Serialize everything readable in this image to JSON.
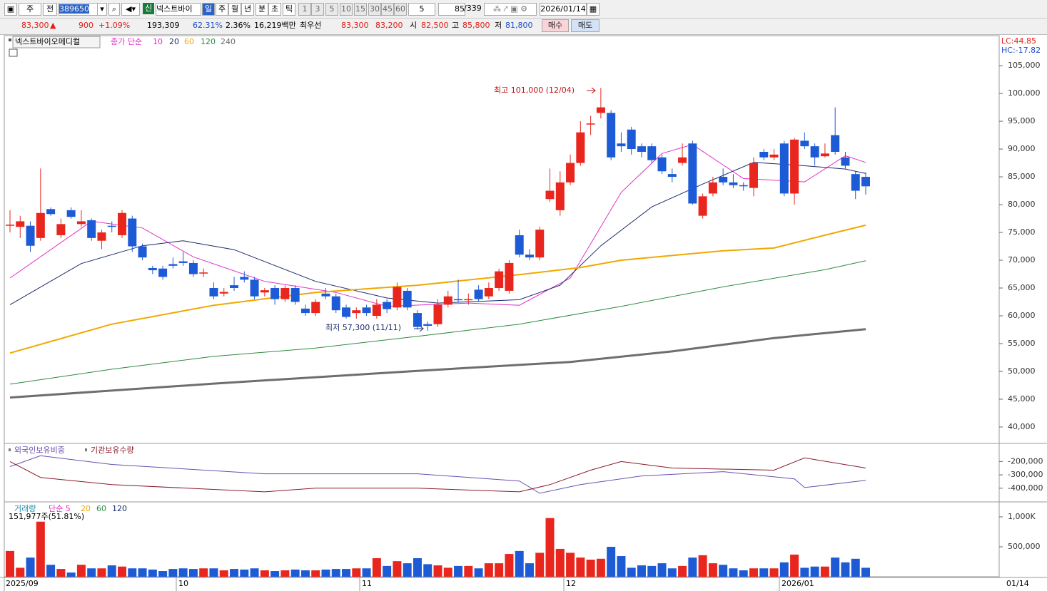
{
  "toolbar": {
    "period_type": "주",
    "scope": "전",
    "code": "389650",
    "credit": "신",
    "name": "넥스트바이",
    "timeframes": [
      "일",
      "주",
      "월",
      "년",
      "분",
      "초",
      "틱"
    ],
    "intervals": [
      "1",
      "3",
      "5",
      "10",
      "15",
      "30",
      "45",
      "60"
    ],
    "interval_select": "5",
    "count": "85",
    "total": "/339",
    "date": "2026/01/14"
  },
  "quote": {
    "price": "83,300",
    "arrow": "▲",
    "change": "900",
    "rate": "+1.09%",
    "volume": "193,309",
    "ratio": "62.31%",
    "turnover": "2.36%",
    "amount": "16,219백만",
    "best_label": "최우선",
    "best_ask": "83,300",
    "best_bid": "83,200",
    "open_label": "시",
    "open": "82,500",
    "high_label": "고",
    "high": "85,800",
    "low_label": "저",
    "low": "81,800",
    "buy": "매수",
    "sell": "매도"
  },
  "chart": {
    "type": "candlestick",
    "stock": "넥스트바이오메디컬",
    "ma_label": "종가 단순",
    "lc": "LC:44.85",
    "hc": "HC:-17.82",
    "up_color": "#e8261d",
    "down_color": "#1d5bd6",
    "ylim": [
      37300,
      110400
    ],
    "yticks": [
      {
        "value": 40000,
        "label": "40,000"
      },
      {
        "value": 45000,
        "label": "45,000"
      },
      {
        "value": 50000,
        "label": "50,000"
      },
      {
        "value": 55000,
        "label": "55,000"
      },
      {
        "value": 60000,
        "label": "60,000"
      },
      {
        "value": 65000,
        "label": "65,000"
      },
      {
        "value": 70000,
        "label": "70,000"
      },
      {
        "value": 75000,
        "label": "75,000"
      },
      {
        "value": 80000,
        "label": "80,000"
      },
      {
        "value": 85000,
        "label": "85,000"
      },
      {
        "value": 90000,
        "label": "90,000"
      },
      {
        "value": 95000,
        "label": "95,000"
      },
      {
        "value": 100000,
        "label": "100,000"
      },
      {
        "value": 105000,
        "label": "105,000"
      }
    ],
    "open": [
      76200,
      76000,
      76200,
      74000,
      79200,
      74500,
      79000,
      76500,
      77200,
      73500,
      76200,
      74500,
      77500,
      72500,
      68600,
      68500,
      69300,
      69800,
      69500,
      67600,
      65000,
      64000,
      65500,
      67000,
      66500,
      64200,
      65000,
      63000,
      65000,
      61300,
      60500,
      64000,
      63500,
      61500,
      60500,
      61500,
      60000,
      62500,
      61500,
      64500,
      60500,
      58500,
      58500,
      62000,
      63000,
      62800,
      64700,
      63500,
      65000,
      64500,
      74500,
      71000,
      70500,
      81000,
      79000,
      84000,
      87500,
      94500,
      96500,
      96500,
      91000,
      93500,
      90500,
      90500,
      88500,
      85500,
      87500,
      91000,
      78000,
      82000,
      85000,
      84000,
      83500,
      83000,
      89500,
      88500,
      91000,
      82000,
      91500,
      90500,
      88700,
      92500,
      88500,
      85500,
      85000
    ],
    "high": [
      79000,
      78000,
      77000,
      86500,
      79500,
      77500,
      79500,
      79000,
      77500,
      75500,
      77000,
      79000,
      78000,
      73000,
      69000,
      69000,
      70500,
      71500,
      70000,
      68500,
      66000,
      65000,
      67000,
      68000,
      67000,
      65000,
      65500,
      65500,
      65500,
      62000,
      63000,
      65000,
      64000,
      62000,
      61500,
      62000,
      63000,
      63000,
      66000,
      65000,
      61000,
      59000,
      63000,
      64500,
      66500,
      64000,
      65500,
      66000,
      68500,
      70000,
      75500,
      72000,
      76000,
      86500,
      86000,
      89000,
      95000,
      96000,
      101000,
      97000,
      93000,
      94000,
      91000,
      91000,
      89000,
      86500,
      91000,
      91500,
      82000,
      85000,
      86500,
      85500,
      84000,
      88500,
      90000,
      90000,
      91500,
      92000,
      93000,
      91000,
      91000,
      97500,
      89500,
      86000,
      85800
    ],
    "low": [
      75000,
      74000,
      71500,
      73500,
      78000,
      74000,
      77500,
      76000,
      73500,
      72000,
      75000,
      74000,
      71500,
      70000,
      67500,
      66500,
      68500,
      69000,
      67000,
      67000,
      63000,
      63500,
      64500,
      66000,
      63000,
      63500,
      62000,
      62500,
      62000,
      60000,
      60000,
      63000,
      60500,
      59500,
      59500,
      60000,
      59500,
      60500,
      61000,
      61000,
      57500,
      57300,
      58000,
      61500,
      62500,
      62000,
      62500,
      63000,
      64500,
      64000,
      70500,
      70000,
      70000,
      80500,
      78000,
      83500,
      87000,
      92500,
      95500,
      88000,
      89500,
      89000,
      88500,
      87500,
      85500,
      84000,
      87000,
      80000,
      77500,
      81500,
      83500,
      83000,
      82500,
      81500,
      88000,
      88000,
      81500,
      80000,
      90000,
      87000,
      88500,
      89000,
      86500,
      81000,
      81800
    ],
    "close": [
      76400,
      77000,
      72600,
      78500,
      78300,
      76500,
      77800,
      77000,
      74000,
      75000,
      76000,
      78500,
      72500,
      70500,
      68200,
      67000,
      69000,
      69500,
      67500,
      67800,
      63500,
      64300,
      65000,
      66500,
      63500,
      64600,
      63000,
      65000,
      62500,
      60500,
      62500,
      63500,
      61000,
      59800,
      61000,
      60500,
      62000,
      61200,
      65200,
      61500,
      58000,
      58200,
      62000,
      63500,
      62800,
      63000,
      63000,
      65000,
      68000,
      69500,
      71000,
      70500,
      75500,
      82500,
      84000,
      87500,
      93000,
      94600,
      97500,
      88500,
      90500,
      90000,
      89500,
      88000,
      86000,
      85000,
      88500,
      80200,
      81500,
      84000,
      84000,
      83500,
      83300,
      87500,
      88500,
      89000,
      82000,
      91700,
      90500,
      88500,
      89200,
      89500,
      87000,
      82500,
      83300
    ],
    "ma": [
      {
        "name": "10",
        "color": "#e030c8",
        "width": 1,
        "x": [
          0,
          8,
          13,
          18,
          25,
          32,
          37,
          45,
          50,
          55,
          60,
          64,
          67,
          72,
          78,
          82,
          84
        ],
        "values": [
          66800,
          77000,
          75800,
          70600,
          66200,
          64200,
          61700,
          62300,
          61900,
          66800,
          82200,
          89200,
          90800,
          84700,
          84100,
          88800,
          87600
        ]
      },
      {
        "name": "20",
        "color": "#1b2a6b",
        "width": 1,
        "x": [
          0,
          7,
          13,
          17,
          22,
          30,
          37,
          42,
          50,
          54,
          58,
          63,
          68,
          73,
          78,
          82,
          84
        ],
        "values": [
          62000,
          69400,
          72600,
          73500,
          71900,
          66200,
          63200,
          62300,
          62900,
          65500,
          72600,
          79600,
          83700,
          87600,
          87000,
          86400,
          85600
        ]
      },
      {
        "name": "60",
        "color": "#f0a800",
        "width": 2,
        "x": [
          0,
          10,
          20,
          30,
          40,
          50,
          56,
          60,
          70,
          75,
          80,
          84
        ],
        "values": [
          53300,
          58500,
          61900,
          64200,
          65500,
          67400,
          68700,
          70000,
          71700,
          72200,
          74500,
          76300
        ]
      },
      {
        "name": "120",
        "color": "#2e8b3e",
        "width": 1,
        "x": [
          0,
          10,
          20,
          30,
          40,
          50,
          60,
          70,
          80,
          84
        ],
        "values": [
          47700,
          50400,
          52700,
          54200,
          56300,
          58500,
          61700,
          65200,
          68300,
          69900
        ]
      },
      {
        "name": "240",
        "color": "#6e6e6e",
        "width": 3,
        "x": [
          0,
          20,
          40,
          55,
          65,
          75,
          84
        ],
        "values": [
          45300,
          47800,
          50100,
          51700,
          53600,
          56000,
          57600
        ]
      }
    ],
    "annotations": [
      {
        "text": "최고 101,000 (12/04)",
        "color": "#c0141a"
      },
      {
        "text": "최저 57,300 (11/11)",
        "color": "#1b2a6b"
      }
    ],
    "x_labels": [
      "2025/09",
      "10",
      "11",
      "12",
      "2026/01"
    ],
    "x_last": "01/14"
  },
  "holdings": {
    "type": "line",
    "ylim": [
      -497000,
      -70000
    ],
    "yticks": [
      {
        "value": -200000,
        "label": "-200,000"
      },
      {
        "value": -300000,
        "label": "-300,000"
      },
      {
        "value": -400000,
        "label": "-400,000"
      }
    ],
    "series": [
      {
        "name": "외국인보유비중",
        "color": "#6a4fb0",
        "x": [
          0,
          3,
          10,
          25,
          40,
          50,
          52,
          56,
          62,
          70,
          77,
          78,
          84
        ],
        "values": [
          -238000,
          -157000,
          -222000,
          -292000,
          -292000,
          -346000,
          -438000,
          -373000,
          -308000,
          -276000,
          -330000,
          -395000,
          -341000
        ]
      },
      {
        "name": "기관보유수량",
        "color": "#8b1a2b",
        "x": [
          0,
          3,
          10,
          25,
          30,
          40,
          50,
          53,
          57,
          60,
          65,
          75,
          78,
          84
        ],
        "values": [
          -200000,
          -319000,
          -373000,
          -427000,
          -400000,
          -400000,
          -427000,
          -373000,
          -265000,
          -200000,
          -249000,
          -265000,
          -173000,
          -249000
        ]
      }
    ]
  },
  "volume": {
    "type": "bar",
    "label": "거래량",
    "ma_legend": [
      "단순 5",
      "20",
      "60",
      "120"
    ],
    "ma_legend_colors": [
      "#e030c8",
      "#f0a800",
      "#2e8b3e",
      "#1b2a6b"
    ],
    "info": "151,977주(51.81%)",
    "ylim": [
      0,
      1226000
    ],
    "yticks": [
      {
        "value": 500000,
        "label": "500,000"
      },
      {
        "value": 1000000,
        "label": "1,000K"
      }
    ],
    "values": [
      430000,
      150000,
      320000,
      920000,
      200000,
      130000,
      70000,
      200000,
      140000,
      140000,
      190000,
      170000,
      140000,
      140000,
      120000,
      95000,
      130000,
      140000,
      130000,
      140000,
      140000,
      107000,
      130000,
      120000,
      140000,
      107000,
      95000,
      107000,
      120000,
      107000,
      107000,
      120000,
      130000,
      130000,
      140000,
      140000,
      310000,
      180000,
      260000,
      225000,
      310000,
      210000,
      190000,
      150000,
      180000,
      180000,
      140000,
      225000,
      225000,
      380000,
      430000,
      225000,
      400000,
      980000,
      465000,
      400000,
      320000,
      285000,
      300000,
      500000,
      345000,
      150000,
      190000,
      180000,
      225000,
      140000,
      180000,
      320000,
      360000,
      225000,
      200000,
      140000,
      107000,
      140000,
      140000,
      140000,
      240000,
      370000,
      150000,
      170000,
      170000,
      320000,
      240000,
      300000,
      150000
    ]
  }
}
